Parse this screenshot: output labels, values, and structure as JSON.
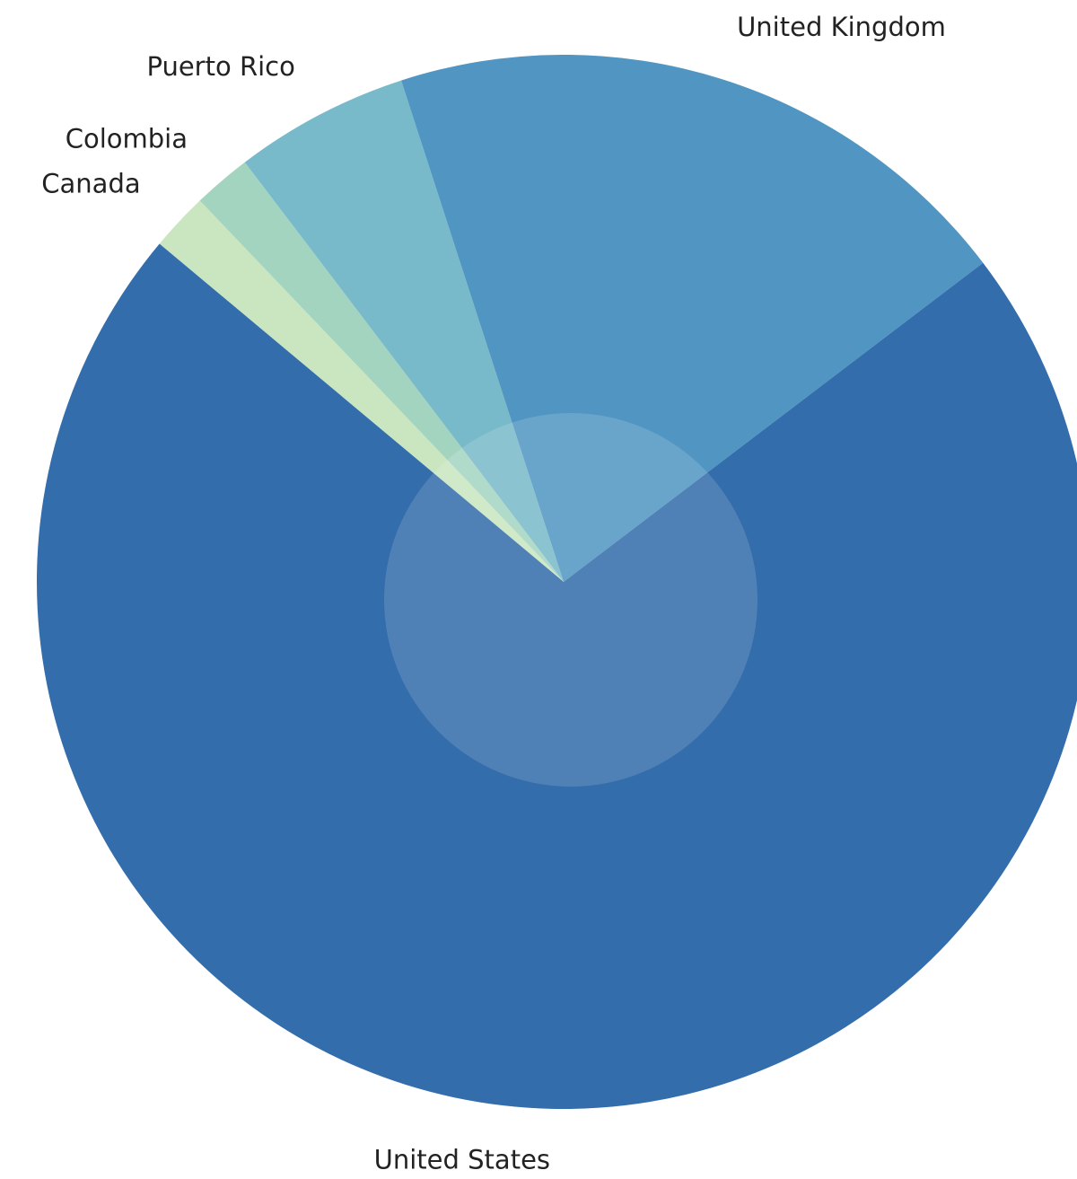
{
  "chart_data": {
    "type": "pie",
    "categories": [
      "Canada",
      "Colombia",
      "Puerto Rico",
      "United Kingdom",
      "United States"
    ],
    "values": [
      1,
      1,
      3,
      11,
      40
    ],
    "colors": [
      "#c9e6c0",
      "#a3d4c0",
      "#78bac9",
      "#5195c2",
      "#336dab"
    ]
  }
}
